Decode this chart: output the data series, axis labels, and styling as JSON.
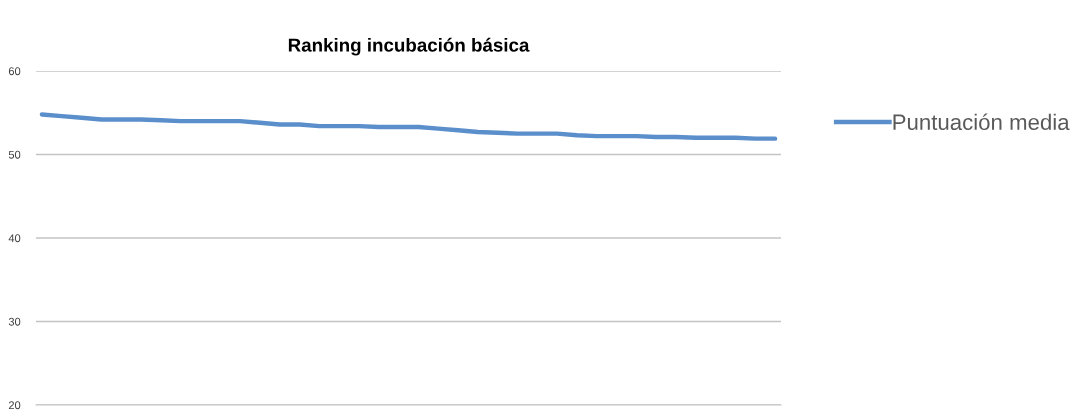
{
  "chart_data": {
    "type": "line",
    "title": "Ranking incubación básica",
    "categories": [
      null,
      null,
      null,
      null,
      null,
      null,
      null,
      null,
      null,
      null,
      null,
      null,
      null,
      null,
      null,
      null,
      null,
      null,
      null,
      null,
      null,
      null,
      null,
      null,
      null,
      null,
      null,
      null,
      null,
      null,
      null,
      null,
      null,
      null,
      null,
      null,
      null,
      null
    ],
    "series": [
      {
        "name": "Puntuación media",
        "color": "#5b8fcb",
        "values": [
          54.8,
          54.6,
          54.4,
          54.2,
          54.2,
          54.2,
          54.1,
          54.0,
          54.0,
          54.0,
          54.0,
          53.8,
          53.6,
          53.6,
          53.4,
          53.4,
          53.4,
          53.3,
          53.3,
          53.3,
          53.1,
          52.9,
          52.7,
          52.6,
          52.5,
          52.5,
          52.5,
          52.3,
          52.2,
          52.2,
          52.2,
          52.1,
          52.1,
          52.0,
          52.0,
          52.0,
          51.9,
          51.9
        ]
      }
    ],
    "ylim": [
      20,
      60
    ],
    "yticks": [
      20,
      30,
      40,
      50,
      60
    ],
    "grid": "y",
    "legend": "right",
    "tick_labels": "y",
    "line_style": "solid"
  }
}
